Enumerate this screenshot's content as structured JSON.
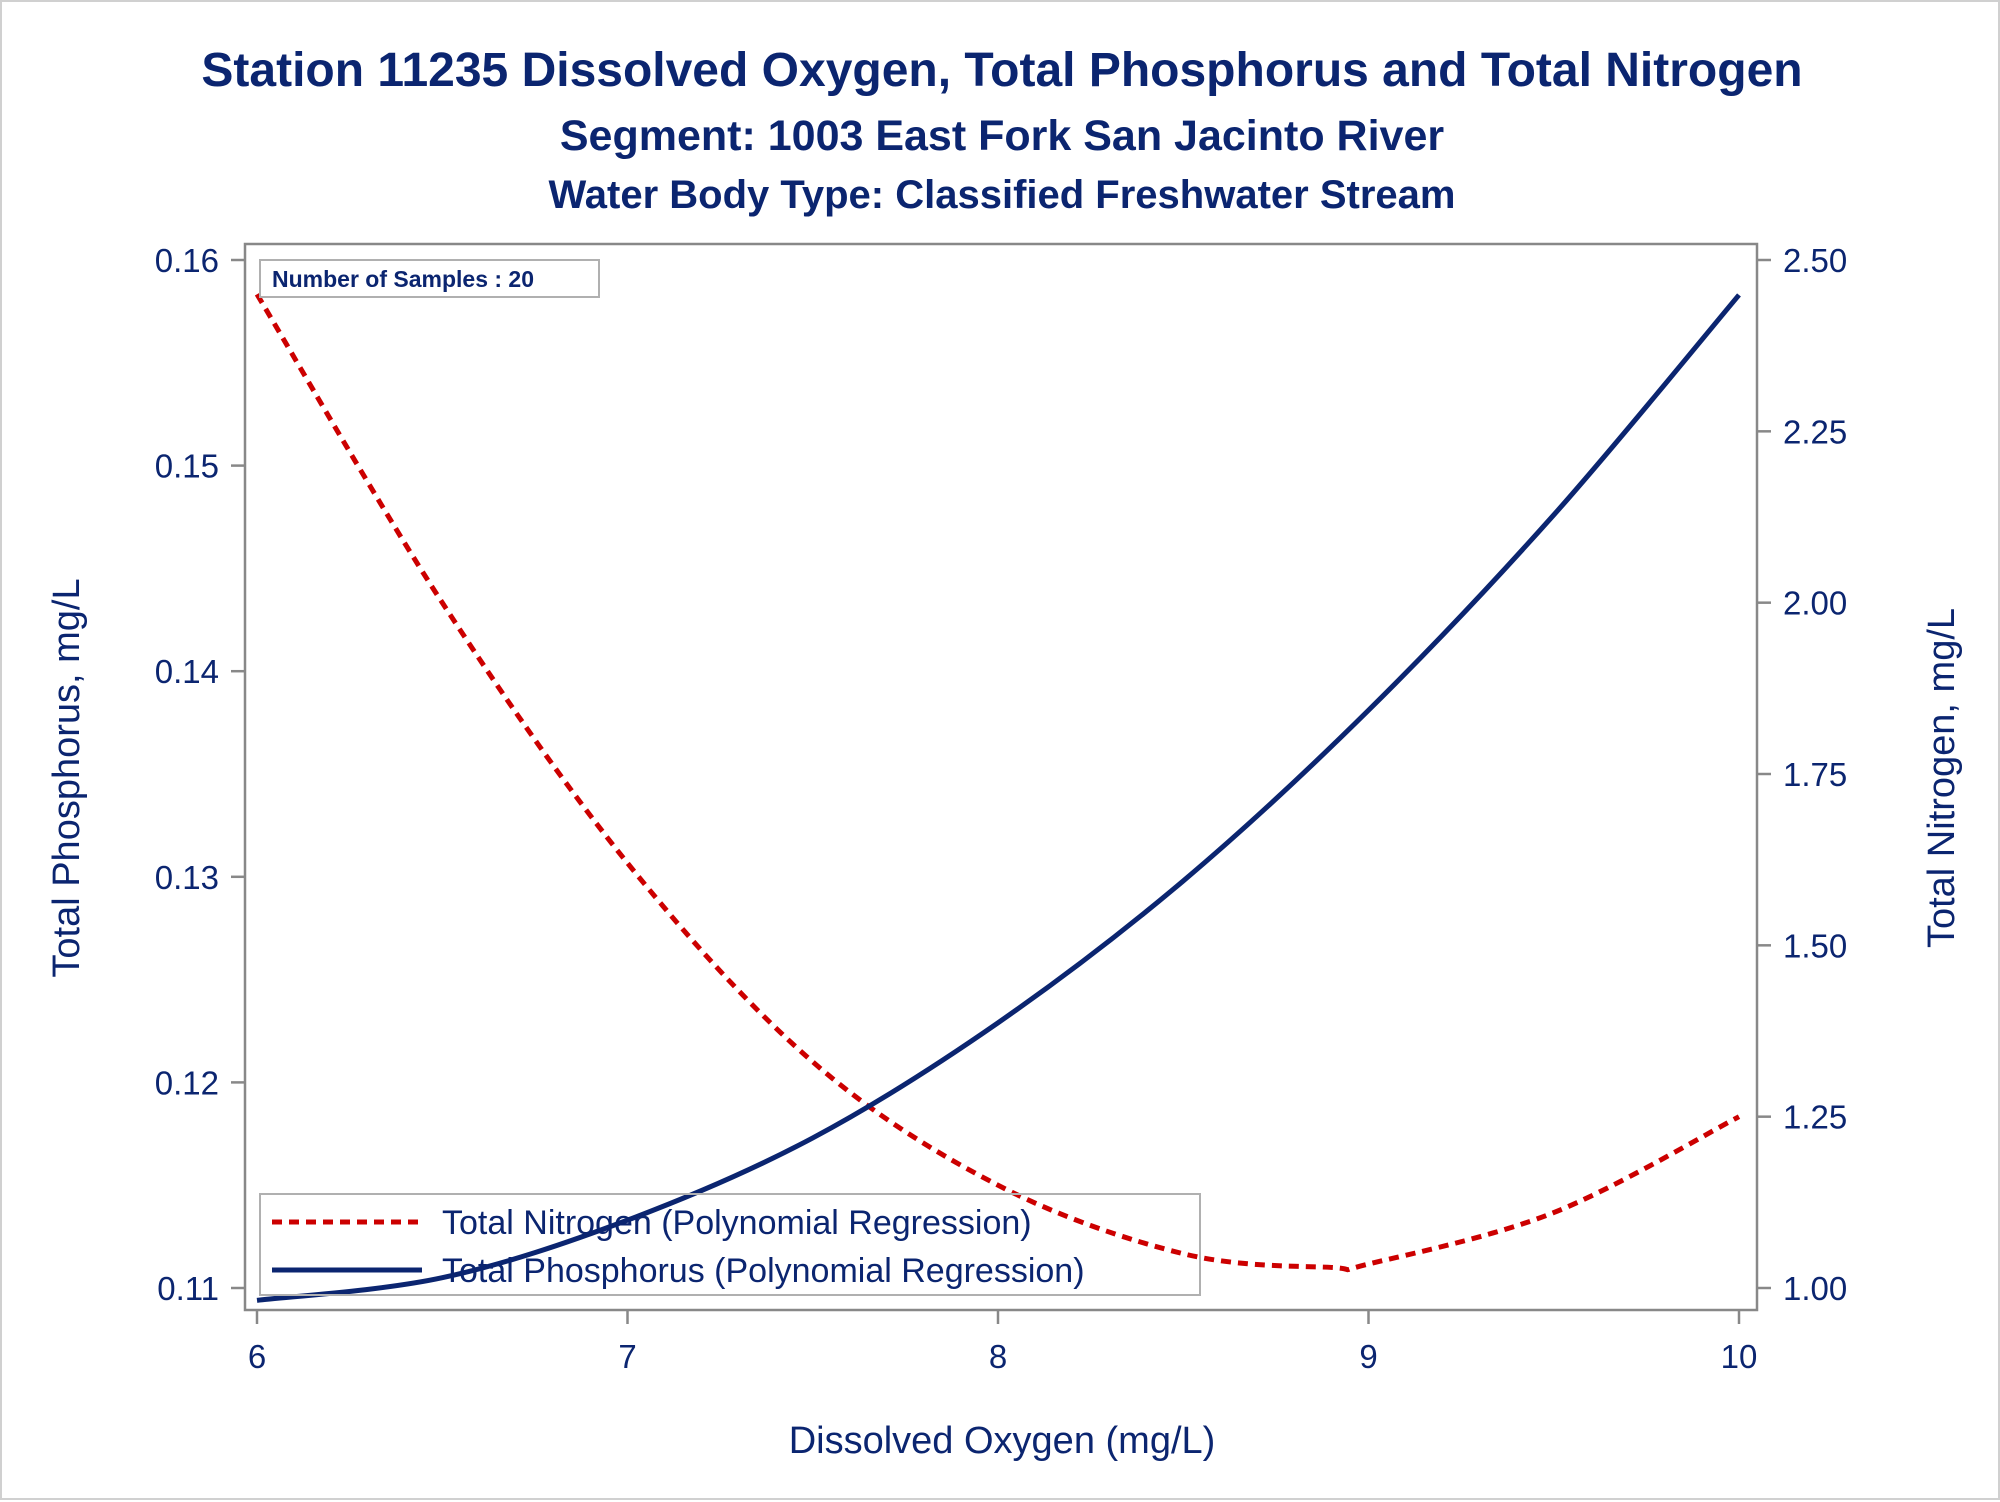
{
  "titles": {
    "title": "Station 11235  Dissolved Oxygen, Total Phosphorus and Total Nitrogen",
    "subtitle": "Segment: 1003  East Fork San Jacinto River",
    "subtitle2": "Water Body Type: Classified Freshwater Stream"
  },
  "inset": {
    "samples_text": "Number of Samples : 20"
  },
  "colors": {
    "text": "#0b2570",
    "phosphorus": "#0b2570",
    "nitrogen": "#cc0000",
    "axis": "#888888"
  },
  "chart_data": {
    "type": "line",
    "title": "Station 11235  Dissolved Oxygen, Total Phosphorus and Total Nitrogen",
    "xlabel": "Dissolved Oxygen (mg/L)",
    "ylabel": "Total Phosphorus, mg/L",
    "y2label": "Total Nitrogen, mg/L",
    "xlim": [
      6,
      10
    ],
    "ylim": [
      0.11,
      0.16
    ],
    "y2lim": [
      1.0,
      2.5
    ],
    "x_ticks": [
      "6",
      "7",
      "8",
      "9",
      "10"
    ],
    "y_ticks": [
      "0.11",
      "0.12",
      "0.13",
      "0.14",
      "0.15",
      "0.16"
    ],
    "y2_ticks": [
      "1.00",
      "1.25",
      "1.50",
      "1.75",
      "2.00",
      "2.25",
      "2.50"
    ],
    "legend_position": "bottom-left",
    "grid": false,
    "series": [
      {
        "name": "Total Nitrogen (Polynomial Regression)",
        "axis": "right",
        "style": "dashed",
        "color": "#cc0000",
        "x": [
          6.0,
          6.5,
          7.0,
          7.5,
          8.0,
          8.5,
          8.9,
          9.0,
          9.5,
          10.0
        ],
        "y": [
          2.45,
          2.0,
          1.62,
          1.33,
          1.15,
          1.05,
          1.03,
          1.035,
          1.11,
          1.25
        ]
      },
      {
        "name": "Total Phosphorus (Polynomial Regression)",
        "axis": "left",
        "style": "solid",
        "color": "#0b2570",
        "x": [
          6.0,
          6.5,
          7.0,
          7.5,
          8.0,
          8.5,
          9.0,
          9.5,
          10.0
        ],
        "y": [
          0.1094,
          0.1105,
          0.1133,
          0.1173,
          0.1229,
          0.1298,
          0.1381,
          0.1476,
          0.1583
        ]
      }
    ]
  }
}
